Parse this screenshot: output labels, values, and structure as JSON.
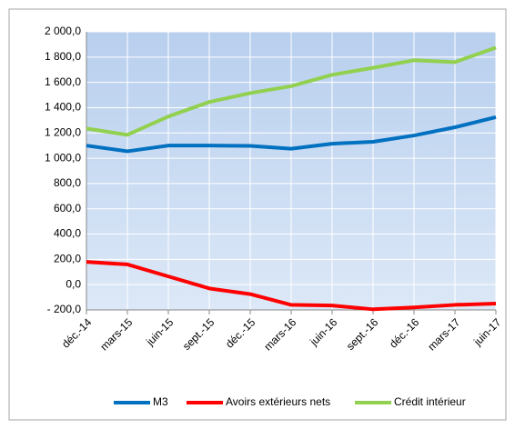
{
  "chart_data": {
    "type": "line",
    "categories": [
      "déc.-14",
      "mars-15",
      "juin-15",
      "sept.-15",
      "déc.-15",
      "mars-16",
      "juin-16",
      "sept.-16",
      "déc.-16",
      "mars-17",
      "juin-17"
    ],
    "series": [
      {
        "name": "M3",
        "color": "#0070c0",
        "values": [
          1100,
          1055,
          1100,
          1100,
          1098,
          1075,
          1115,
          1130,
          1180,
          1245,
          1325
        ]
      },
      {
        "name": "Avoirs extérieurs nets",
        "color": "#ff0000",
        "values": [
          180,
          160,
          65,
          -30,
          -75,
          -160,
          -165,
          -195,
          -180,
          -160,
          -150
        ]
      },
      {
        "name": "Crédit intérieur",
        "color": "#92d050",
        "values": [
          1235,
          1185,
          1330,
          1445,
          1515,
          1570,
          1660,
          1715,
          1775,
          1760,
          1875
        ]
      }
    ],
    "ylim": [
      -200,
      2000
    ],
    "yticks": [
      {
        "value": -200,
        "label": "- 200,0"
      },
      {
        "value": 0,
        "label": "0,0"
      },
      {
        "value": 200,
        "label": "200,0"
      },
      {
        "value": 400,
        "label": "400,0"
      },
      {
        "value": 600,
        "label": "600,0"
      },
      {
        "value": 800,
        "label": "800,0"
      },
      {
        "value": 1000,
        "label": "1 000,0"
      },
      {
        "value": 1200,
        "label": "1 200,0"
      },
      {
        "value": 1400,
        "label": "1 400,0"
      },
      {
        "value": 1600,
        "label": "1 600,0"
      },
      {
        "value": 1800,
        "label": "1 800,0"
      },
      {
        "value": 2000,
        "label": "2 000,0"
      }
    ],
    "grid": true
  }
}
